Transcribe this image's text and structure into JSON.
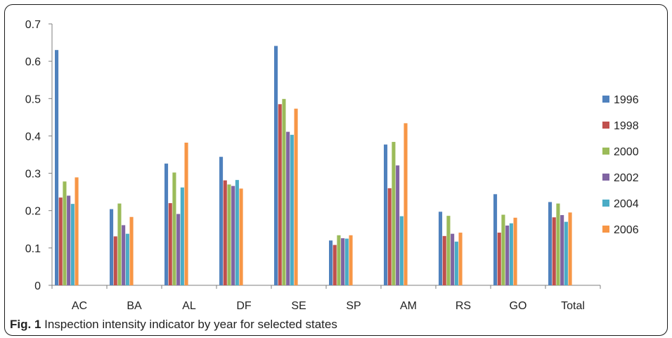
{
  "chart_data": {
    "type": "bar",
    "categories": [
      "AC",
      "BA",
      "AL",
      "DF",
      "SE",
      "SP",
      "AM",
      "RS",
      "GO",
      "Total"
    ],
    "series": [
      {
        "name": "1996",
        "color": "#4f81bd",
        "values": [
          0.63,
          0.204,
          0.326,
          0.344,
          0.641,
          0.12,
          0.377,
          0.197,
          0.244,
          0.223
        ]
      },
      {
        "name": "1998",
        "color": "#c0504d",
        "values": [
          0.235,
          0.131,
          0.22,
          0.281,
          0.485,
          0.108,
          0.26,
          0.132,
          0.141,
          0.182
        ]
      },
      {
        "name": "2000",
        "color": "#9bbb59",
        "values": [
          0.278,
          0.219,
          0.302,
          0.27,
          0.499,
          0.134,
          0.384,
          0.186,
          0.189,
          0.219
        ]
      },
      {
        "name": "2002",
        "color": "#8064a2",
        "values": [
          0.24,
          0.161,
          0.191,
          0.266,
          0.411,
          0.126,
          0.321,
          0.138,
          0.16,
          0.188
        ]
      },
      {
        "name": "2004",
        "color": "#4bacc6",
        "values": [
          0.218,
          0.138,
          0.262,
          0.282,
          0.403,
          0.125,
          0.185,
          0.117,
          0.166,
          0.17
        ]
      },
      {
        "name": "2006",
        "color": "#f79646",
        "values": [
          0.289,
          0.183,
          0.382,
          0.259,
          0.473,
          0.134,
          0.434,
          0.141,
          0.181,
          0.195
        ]
      }
    ],
    "ylim": [
      0,
      0.7
    ],
    "yticks": [
      "0",
      "0.1",
      "0.2",
      "0.3",
      "0.4",
      "0.5",
      "0.6",
      "0.7"
    ],
    "legend_position": "right",
    "grid": false
  },
  "caption": {
    "label": "Fig. 1",
    "text": " Inspection intensity indicator by year for selected states"
  }
}
